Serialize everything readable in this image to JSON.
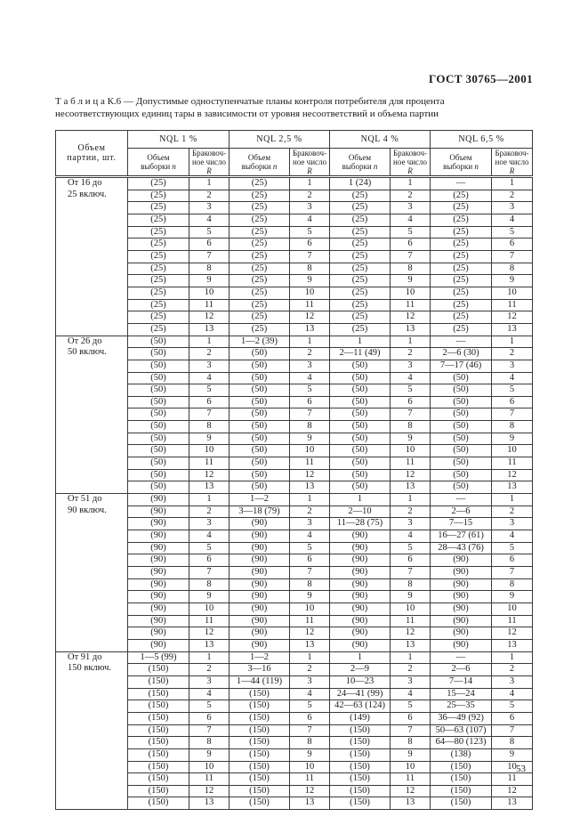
{
  "page": {
    "doc_ref": "ГОСТ 30765—2001",
    "caption_label": "Т а б л и ц а   К.6",
    "caption_text": "— Допустимые одноступенчатые планы контроля потребителя для процента несоответствующих единиц тары в зависимости от уровня несоответствий и объема партии",
    "page_number": "53"
  },
  "table": {
    "lot_header_line1": "Объем",
    "lot_header_line2": "партии, шт.",
    "group_headers": [
      "NQL 1 %",
      "NQL 2,5 %",
      "NQL 4 %",
      "NQL 6,5 %"
    ],
    "sub_n": {
      "line1": "Объем",
      "line2": "выборки ",
      "symbol": "n"
    },
    "sub_r": {
      "line1": "Браковоч-",
      "line2": "ное число",
      "symbol": "R"
    },
    "groups": [
      {
        "label_line1": "От 16 до",
        "label_line2": "25 включ.",
        "rows": [
          [
            "(25)",
            "1",
            "(25)",
            "1",
            "1 (24)",
            "1",
            "—",
            "1"
          ],
          [
            "(25)",
            "2",
            "(25)",
            "2",
            "(25)",
            "2",
            "(25)",
            "2"
          ],
          [
            "(25)",
            "3",
            "(25)",
            "3",
            "(25)",
            "3",
            "(25)",
            "3"
          ],
          [
            "(25)",
            "4",
            "(25)",
            "4",
            "(25)",
            "4",
            "(25)",
            "4"
          ],
          [
            "(25)",
            "5",
            "(25)",
            "5",
            "(25)",
            "5",
            "(25)",
            "5"
          ],
          [
            "(25)",
            "6",
            "(25)",
            "6",
            "(25)",
            "6",
            "(25)",
            "6"
          ],
          [
            "(25)",
            "7",
            "(25)",
            "7",
            "(25)",
            "7",
            "(25)",
            "7"
          ],
          [
            "(25)",
            "8",
            "(25)",
            "8",
            "(25)",
            "8",
            "(25)",
            "8"
          ],
          [
            "(25)",
            "9",
            "(25)",
            "9",
            "(25)",
            "9",
            "(25)",
            "9"
          ],
          [
            "(25)",
            "10",
            "(25)",
            "10",
            "(25)",
            "10",
            "(25)",
            "10"
          ],
          [
            "(25)",
            "11",
            "(25)",
            "11",
            "(25)",
            "11",
            "(25)",
            "11"
          ],
          [
            "(25)",
            "12",
            "(25)",
            "12",
            "(25)",
            "12",
            "(25)",
            "12"
          ],
          [
            "(25)",
            "13",
            "(25)",
            "13",
            "(25)",
            "13",
            "(25)",
            "13"
          ]
        ]
      },
      {
        "label_line1": "От 26 до",
        "label_line2": "50 включ.",
        "rows": [
          [
            "(50)",
            "1",
            "1—2 (39)",
            "1",
            "1",
            "1",
            "—",
            "1"
          ],
          [
            "(50)",
            "2",
            "(50)",
            "2",
            "2—11 (49)",
            "2",
            "2—6 (30)",
            "2"
          ],
          [
            "(50)",
            "3",
            "(50)",
            "3",
            "(50)",
            "3",
            "7—17 (46)",
            "3"
          ],
          [
            "(50)",
            "4",
            "(50)",
            "4",
            "(50)",
            "4",
            "(50)",
            "4"
          ],
          [
            "(50)",
            "5",
            "(50)",
            "5",
            "(50)",
            "5",
            "(50)",
            "5"
          ],
          [
            "(50)",
            "6",
            "(50)",
            "6",
            "(50)",
            "6",
            "(50)",
            "6"
          ],
          [
            "(50)",
            "7",
            "(50)",
            "7",
            "(50)",
            "7",
            "(50)",
            "7"
          ],
          [
            "(50)",
            "8",
            "(50)",
            "8",
            "(50)",
            "8",
            "(50)",
            "8"
          ],
          [
            "(50)",
            "9",
            "(50)",
            "9",
            "(50)",
            "9",
            "(50)",
            "9"
          ],
          [
            "(50)",
            "10",
            "(50)",
            "10",
            "(50)",
            "10",
            "(50)",
            "10"
          ],
          [
            "(50)",
            "11",
            "(50)",
            "11",
            "(50)",
            "11",
            "(50)",
            "11"
          ],
          [
            "(50)",
            "12",
            "(50)",
            "12",
            "(50)",
            "12",
            "(50)",
            "12"
          ],
          [
            "(50)",
            "13",
            "(50)",
            "13",
            "(50)",
            "13",
            "(50)",
            "13"
          ]
        ]
      },
      {
        "label_line1": "От 51 до",
        "label_line2": "90 включ.",
        "rows": [
          [
            "(90)",
            "1",
            "1—2",
            "1",
            "1",
            "1",
            "—",
            "1"
          ],
          [
            "(90)",
            "2",
            "3—18 (79)",
            "2",
            "2—10",
            "2",
            "2—6",
            "2"
          ],
          [
            "(90)",
            "3",
            "(90)",
            "3",
            "11—28 (75)",
            "3",
            "7—15",
            "3"
          ],
          [
            "(90)",
            "4",
            "(90)",
            "4",
            "(90)",
            "4",
            "16—27 (61)",
            "4"
          ],
          [
            "(90)",
            "5",
            "(90)",
            "5",
            "(90)",
            "5",
            "28—43 (76)",
            "5"
          ],
          [
            "(90)",
            "6",
            "(90)",
            "6",
            "(90)",
            "6",
            "(90)",
            "6"
          ],
          [
            "(90)",
            "7",
            "(90)",
            "7",
            "(90)",
            "7",
            "(90)",
            "7"
          ],
          [
            "(90)",
            "8",
            "(90)",
            "8",
            "(90)",
            "8",
            "(90)",
            "8"
          ],
          [
            "(90)",
            "9",
            "(90)",
            "9",
            "(90)",
            "9",
            "(90)",
            "9"
          ],
          [
            "(90)",
            "10",
            "(90)",
            "10",
            "(90)",
            "10",
            "(90)",
            "10"
          ],
          [
            "(90)",
            "11",
            "(90)",
            "11",
            "(90)",
            "11",
            "(90)",
            "11"
          ],
          [
            "(90)",
            "12",
            "(90)",
            "12",
            "(90)",
            "12",
            "(90)",
            "12"
          ],
          [
            "(90)",
            "13",
            "(90)",
            "13",
            "(90)",
            "13",
            "(90)",
            "13"
          ]
        ]
      },
      {
        "label_line1": "От 91 до",
        "label_line2": "150 включ.",
        "rows": [
          [
            "1—5 (99)",
            "1",
            "1—2",
            "1",
            "1",
            "1",
            "—",
            "1"
          ],
          [
            "(150)",
            "2",
            "3—16",
            "2",
            "2—9",
            "2",
            "2—6",
            "2"
          ],
          [
            "(150)",
            "3",
            "1—44 (119)",
            "3",
            "10—23",
            "3",
            "7—14",
            "3"
          ],
          [
            "(150)",
            "4",
            "(150)",
            "4",
            "24—41 (99)",
            "4",
            "15—24",
            "4"
          ],
          [
            "(150)",
            "5",
            "(150)",
            "5",
            "42—63 (124)",
            "5",
            "25—35",
            "5"
          ],
          [
            "(150)",
            "6",
            "(150)",
            "6",
            "(149)",
            "6",
            "36—49 (92)",
            "6"
          ],
          [
            "(150)",
            "7",
            "(150)",
            "7",
            "(150)",
            "7",
            "50—63 (107)",
            "7"
          ],
          [
            "(150)",
            "8",
            "(150)",
            "8",
            "(150)",
            "8",
            "64—80 (123)",
            "8"
          ],
          [
            "(150)",
            "9",
            "(150)",
            "9",
            "(150)",
            "9",
            "(138)",
            "9"
          ],
          [
            "(150)",
            "10",
            "(150)",
            "10",
            "(150)",
            "10",
            "(150)",
            "10"
          ],
          [
            "(150)",
            "11",
            "(150)",
            "11",
            "(150)",
            "11",
            "(150)",
            "11"
          ],
          [
            "(150)",
            "12",
            "(150)",
            "12",
            "(150)",
            "12",
            "(150)",
            "12"
          ],
          [
            "(150)",
            "13",
            "(150)",
            "13",
            "(150)",
            "13",
            "(150)",
            "13"
          ]
        ]
      }
    ]
  }
}
